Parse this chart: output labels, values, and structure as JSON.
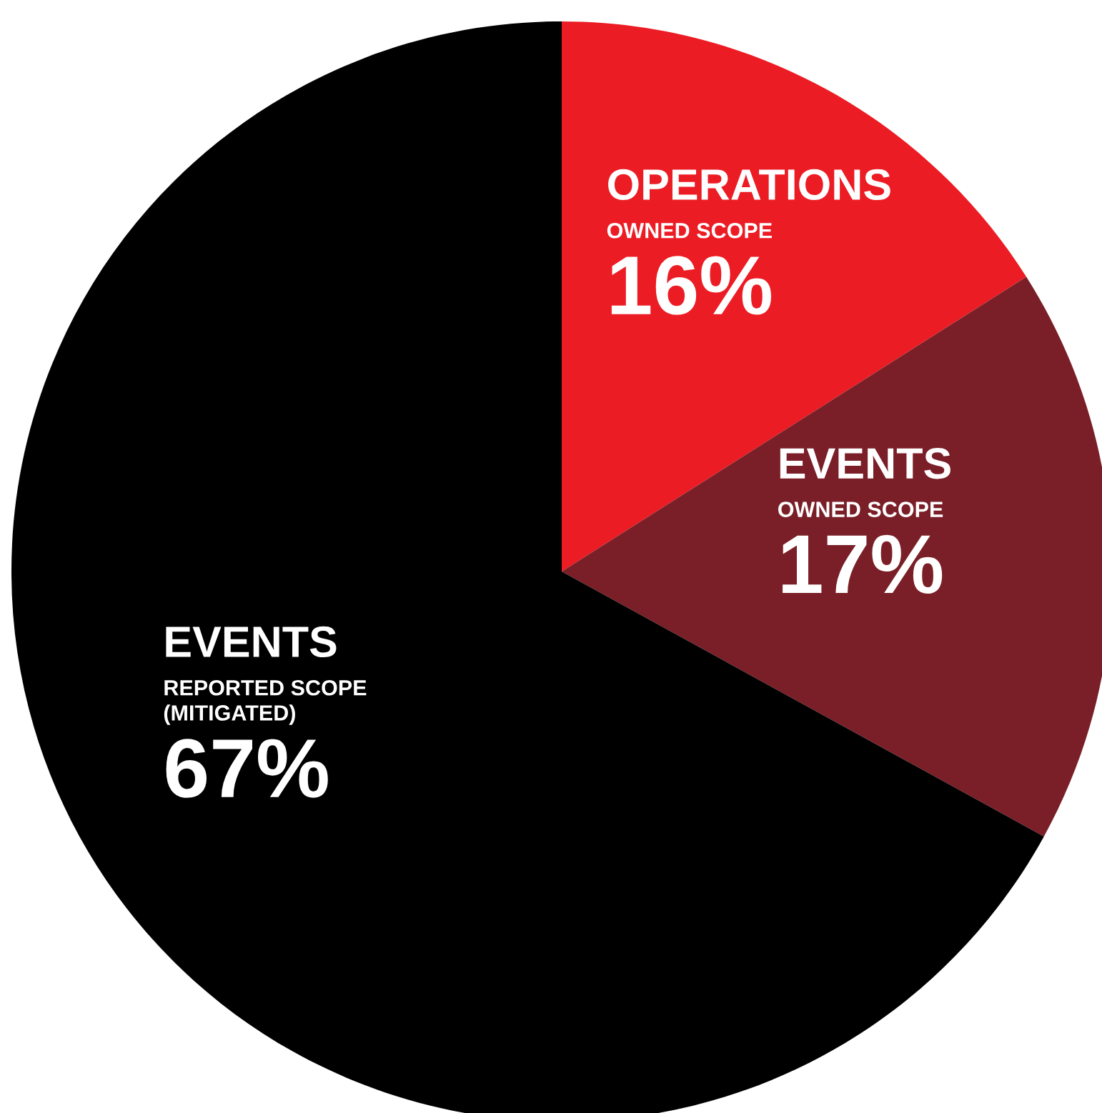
{
  "chart_data": {
    "type": "pie",
    "categories": [
      "OPERATIONS",
      "EVENTS",
      "EVENTS"
    ],
    "values": [
      16,
      17,
      67
    ],
    "colors": [
      "#ec1c24",
      "#7a1f27",
      "#000000"
    ],
    "value_labels": [
      "16%",
      "17%",
      "67%"
    ],
    "annotations": [
      "OWNED SCOPE",
      "OWNED SCOPE",
      "REPORTED SCOPE\n(MITIGATED)"
    ]
  }
}
